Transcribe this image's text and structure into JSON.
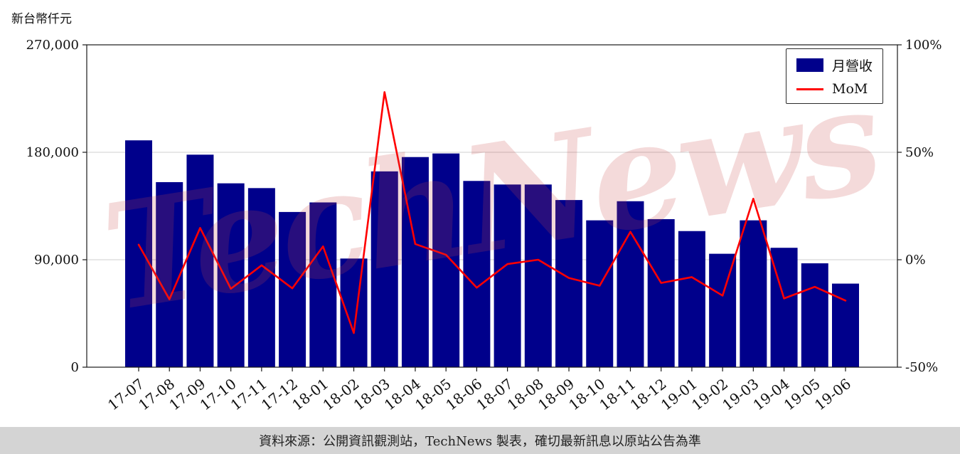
{
  "watermark": "TechNews",
  "footer": {
    "text": "資料來源：公開資訊觀測站，TechNews 製表，確切最新訊息以原站公告為準"
  },
  "styles": {
    "watermark_color": "rgba(201,72,72,0.20)",
    "footer_bg": "#d4d4d4",
    "frame_color": "#1a1a1a",
    "grid_color": "#cfcfcf",
    "text_color": "#111111"
  },
  "chart_data": {
    "type": "bar",
    "title": "",
    "categories": [
      "17-07",
      "17-08",
      "17-09",
      "17-10",
      "17-11",
      "17-12",
      "18-01",
      "18-02",
      "18-03",
      "18-04",
      "18-05",
      "18-06",
      "18-07",
      "18-08",
      "18-09",
      "18-10",
      "18-11",
      "18-12",
      "19-01",
      "19-02",
      "19-03",
      "19-04",
      "19-05",
      "19-06"
    ],
    "series": [
      {
        "name": "月營收",
        "type": "bar",
        "axis": "left",
        "unit": "新台幣仟元",
        "color": "#00008B",
        "values": [
          190000,
          155000,
          178000,
          154000,
          150000,
          130000,
          138000,
          91000,
          164000,
          176000,
          179000,
          156000,
          153000,
          153000,
          140000,
          123000,
          139000,
          124000,
          114000,
          95000,
          123000,
          100000,
          87000,
          70000
        ]
      },
      {
        "name": "MoM",
        "type": "line",
        "axis": "right",
        "unit": "%",
        "color": "#FF0000",
        "values": [
          7,
          -18.4,
          14.8,
          -13.5,
          -2.6,
          -13.3,
          6.2,
          -34.1,
          78,
          7.3,
          2.3,
          -13,
          -2,
          0,
          -8.5,
          -12.1,
          13,
          -10.8,
          -8.1,
          -16.7,
          28.4,
          -18,
          -12.6,
          -19
        ]
      }
    ],
    "left_axis": {
      "label": "新台幣仟元",
      "min": 0,
      "max": 270000,
      "tick_values": [
        0,
        90000,
        180000,
        270000
      ],
      "tick_labels": [
        "0",
        "90,000",
        "180,000",
        "270,000"
      ]
    },
    "right_axis": {
      "label": "%",
      "min": -50,
      "max": 100,
      "tick_values": [
        -50,
        0,
        50,
        100
      ],
      "tick_labels": [
        "-50%",
        "0%",
        "50%",
        "100%"
      ]
    },
    "grid": true,
    "legend_position": "top-right"
  }
}
